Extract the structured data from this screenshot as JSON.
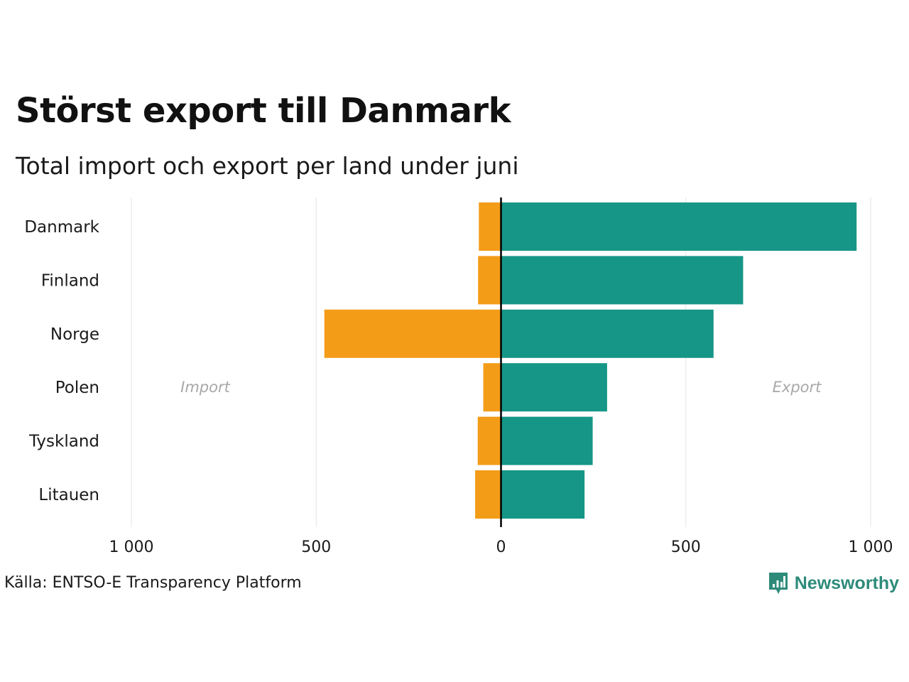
{
  "title": "Störst export till Danmark",
  "subtitle": "Total import och export per land under juni",
  "source": "Källa: ENTSO-E Transparency Platform",
  "brand": {
    "name": "Newsworthy",
    "icon": "newsworthy-logo-icon",
    "color": "#2e8b7a"
  },
  "colors": {
    "import": "#f39c18",
    "export": "#169687",
    "zero_line": "#000000",
    "grid": "#e6e6e6",
    "side_label": "#a8a8a8"
  },
  "chart_data": {
    "type": "bar",
    "orientation": "horizontal",
    "diverging": true,
    "categories": [
      "Danmark",
      "Finland",
      "Norge",
      "Polen",
      "Tyskland",
      "Litauen"
    ],
    "series": [
      {
        "key": "import",
        "values": [
          60,
          62,
          478,
          48,
          63,
          70
        ]
      },
      {
        "key": "export",
        "values": [
          962,
          655,
          575,
          287,
          248,
          226
        ]
      }
    ],
    "side_labels": {
      "left": "Import",
      "right": "Export"
    },
    "xlim": [
      -1000,
      1000
    ],
    "xticks": [
      -1000,
      -500,
      0,
      500,
      1000
    ],
    "xtick_labels": [
      "1 000",
      "500",
      "0",
      "500",
      "1 000"
    ],
    "grid": "vertical"
  }
}
